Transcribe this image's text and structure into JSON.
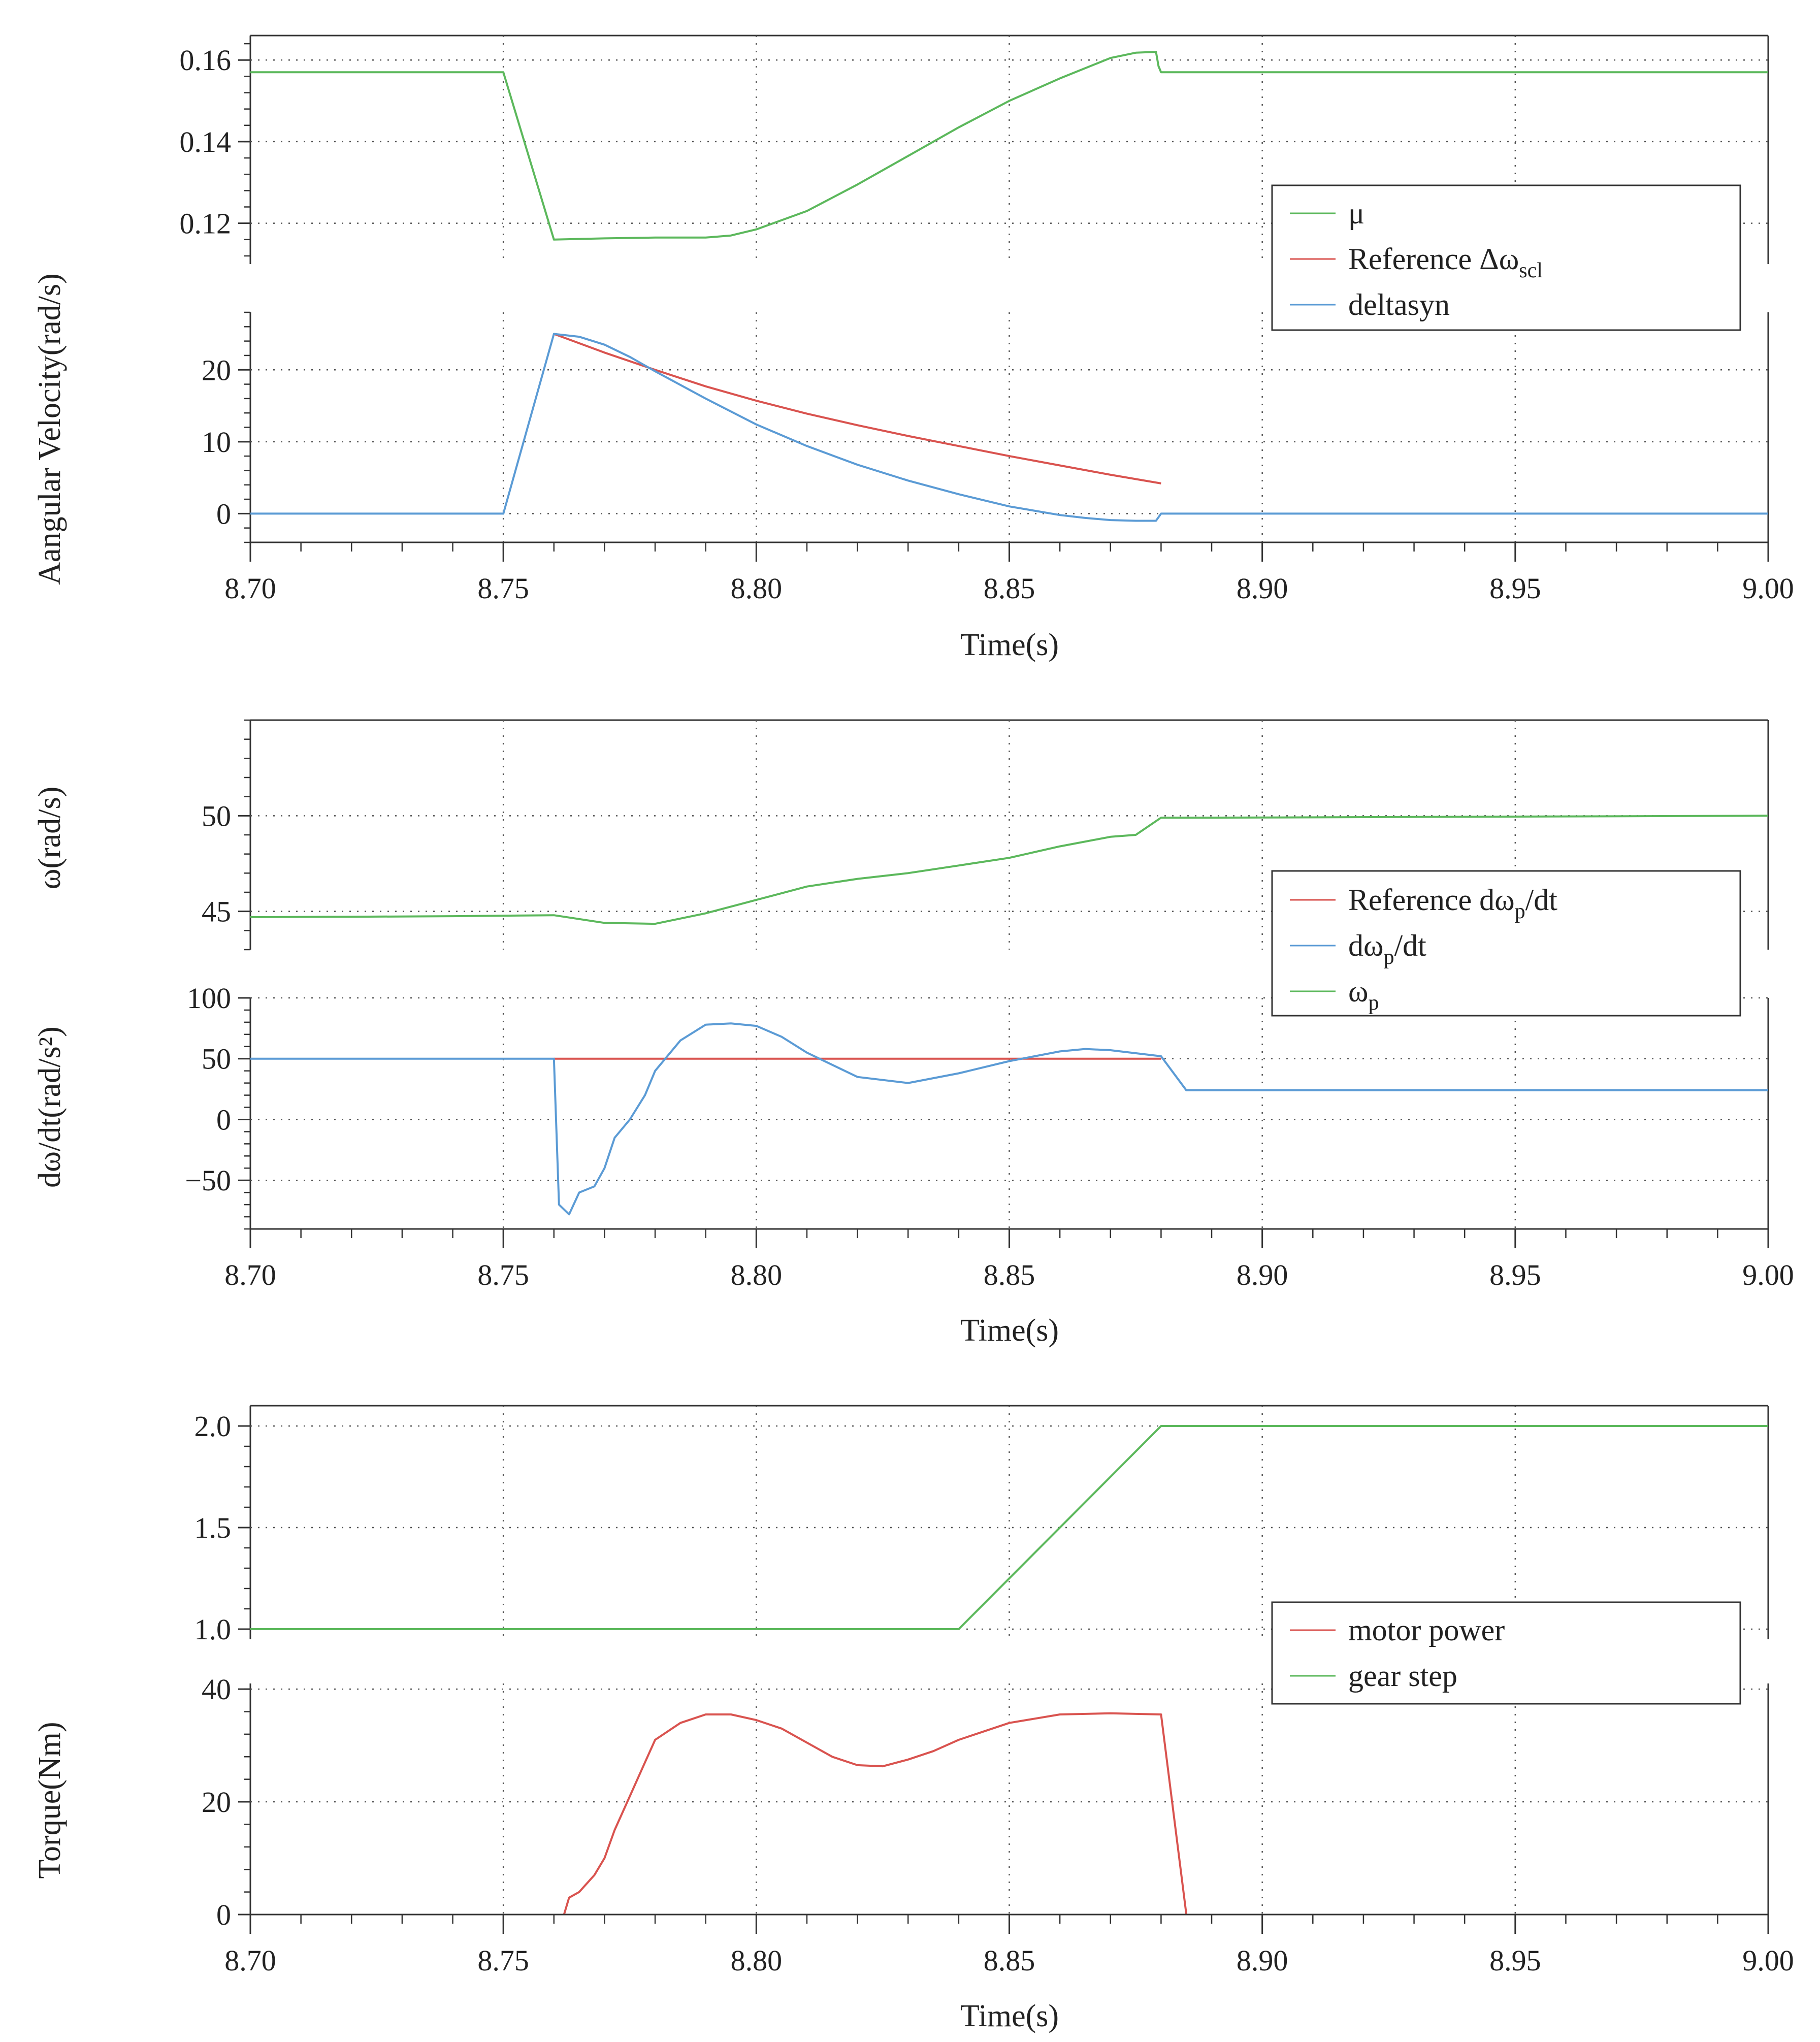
{
  "chart_data": [
    {
      "type": "line",
      "figure": "velocity",
      "ylabel": "Aangular Velocity(rad/s)",
      "xlabel": "Time(s)",
      "xlim": [
        8.7,
        9.0
      ],
      "xticks": [
        "8.70",
        "8.75",
        "8.80",
        "8.85",
        "8.90",
        "8.95",
        "9.00"
      ],
      "legend": {
        "placement": "right",
        "entries": [
          {
            "label": "μ",
            "color": "#5cb85c"
          },
          {
            "label": "Reference Δω",
            "sub": "scl",
            "color": "#d9534f"
          },
          {
            "label": "deltasyn",
            "color": "#5b9bd5"
          }
        ]
      },
      "panels": [
        {
          "ylim": [
            0.11,
            0.166
          ],
          "yticks": [
            "0.12",
            "0.14",
            "0.16"
          ],
          "series": [
            {
              "name": "μ",
              "color": "#5cb85c",
              "x": [
                8.7,
                8.75,
                8.76,
                8.77,
                8.78,
                8.79,
                8.795,
                8.8,
                8.81,
                8.82,
                8.83,
                8.84,
                8.85,
                8.86,
                8.87,
                8.875,
                8.879,
                8.8795,
                8.88,
                9.0
              ],
              "y": [
                0.157,
                0.157,
                0.116,
                0.1163,
                0.1165,
                0.1165,
                0.117,
                0.1185,
                0.123,
                0.1295,
                0.1365,
                0.1435,
                0.15,
                0.1555,
                0.1605,
                0.1618,
                0.162,
                0.1585,
                0.157,
                0.157
              ]
            }
          ]
        },
        {
          "ylim": [
            -4,
            28
          ],
          "yticks": [
            "0",
            "10",
            "20"
          ],
          "series": [
            {
              "name": "Reference Δω",
              "color": "#d9534f",
              "x": [
                8.76,
                8.77,
                8.78,
                8.79,
                8.8,
                8.81,
                8.82,
                8.83,
                8.84,
                8.85,
                8.86,
                8.87,
                8.88
              ],
              "y": [
                25,
                22.4,
                20.0,
                17.7,
                15.7,
                13.9,
                12.3,
                10.8,
                9.4,
                8.0,
                6.7,
                5.4,
                4.2
              ]
            },
            {
              "name": "deltasyn",
              "color": "#5b9bd5",
              "x": [
                8.7,
                8.75,
                8.76,
                8.765,
                8.77,
                8.775,
                8.78,
                8.79,
                8.8,
                8.81,
                8.82,
                8.83,
                8.84,
                8.85,
                8.86,
                8.865,
                8.87,
                8.875,
                8.879,
                8.88,
                9.0
              ],
              "y": [
                0,
                0,
                25,
                24.6,
                23.5,
                21.8,
                19.8,
                16.0,
                12.4,
                9.4,
                6.8,
                4.6,
                2.7,
                1.0,
                -0.2,
                -0.6,
                -0.9,
                -1.0,
                -1.0,
                0,
                0
              ]
            }
          ]
        }
      ]
    },
    {
      "type": "line",
      "figure": "acceleration",
      "xlabel": "Time(s)",
      "xlim": [
        8.7,
        9.0
      ],
      "xticks": [
        "8.70",
        "8.75",
        "8.80",
        "8.85",
        "8.90",
        "8.95",
        "9.00"
      ],
      "legend": {
        "placement": "right",
        "entries": [
          {
            "label": "Reference dω",
            "sub": "p",
            "tail": "/dt",
            "color": "#d9534f"
          },
          {
            "label": "dω",
            "sub": "p",
            "tail": "/dt",
            "color": "#5b9bd5"
          },
          {
            "label": "ω",
            "sub": "p",
            "tail": "",
            "color": "#5cb85c"
          }
        ]
      },
      "panels": [
        {
          "ylabel": "ω(rad/s)",
          "ylim": [
            43.0,
            55.0
          ],
          "yticks": [
            "45",
            "50"
          ],
          "series": [
            {
              "name": "ω",
              "color": "#5cb85c",
              "x": [
                8.7,
                8.72,
                8.74,
                8.76,
                8.77,
                8.78,
                8.79,
                8.8,
                8.81,
                8.82,
                8.83,
                8.84,
                8.85,
                8.86,
                8.87,
                8.875,
                8.88,
                8.89,
                9.0
              ],
              "y": [
                44.7,
                44.72,
                44.75,
                44.8,
                44.4,
                44.35,
                44.9,
                45.6,
                46.3,
                46.7,
                47.0,
                47.4,
                47.8,
                48.4,
                48.9,
                49.0,
                49.9,
                49.9,
                50.0
              ]
            }
          ]
        },
        {
          "ylabel": "dω/dt(rad/s²)",
          "ylim": [
            -90,
            100
          ],
          "yticks": [
            "−50",
            "0",
            "50",
            "100"
          ],
          "series": [
            {
              "name": "Reference dω/dt",
              "color": "#d9534f",
              "x": [
                8.76,
                8.88
              ],
              "y": [
                50,
                50
              ]
            },
            {
              "name": "dω/dt",
              "color": "#5b9bd5",
              "x": [
                8.7,
                8.76,
                8.761,
                8.763,
                8.765,
                8.768,
                8.77,
                8.772,
                8.775,
                8.778,
                8.78,
                8.785,
                8.79,
                8.795,
                8.8,
                8.805,
                8.81,
                8.82,
                8.83,
                8.84,
                8.85,
                8.86,
                8.865,
                8.87,
                8.88,
                8.885,
                9.0
              ],
              "y": [
                50,
                50,
                -70,
                -78,
                -60,
                -55,
                -40,
                -15,
                0,
                20,
                40,
                65,
                78,
                79,
                77,
                68,
                55,
                35,
                30,
                38,
                48,
                56,
                58,
                57,
                52,
                24,
                24
              ]
            }
          ]
        }
      ]
    },
    {
      "type": "line",
      "figure": "torque",
      "ylabel": "Torque(Nm)",
      "xlabel": "Time(s)",
      "xlim": [
        8.7,
        9.0
      ],
      "xticks": [
        "8.70",
        "8.75",
        "8.80",
        "8.85",
        "8.90",
        "8.95",
        "9.00"
      ],
      "legend": {
        "placement": "right",
        "entries": [
          {
            "label": "motor power",
            "color": "#d9534f"
          },
          {
            "label": "gear step",
            "color": "#5cb85c"
          }
        ]
      },
      "panels": [
        {
          "ylim": [
            0.95,
            2.1
          ],
          "yticks": [
            "1.0",
            "1.5",
            "2.0"
          ],
          "series": [
            {
              "name": "gear step",
              "color": "#5cb85c",
              "x": [
                8.7,
                8.84,
                8.88,
                9.0
              ],
              "y": [
                1.0,
                1.0,
                2.0,
                2.0
              ]
            }
          ]
        },
        {
          "ylim": [
            0,
            41
          ],
          "yticks": [
            "0",
            "20",
            "40"
          ],
          "series": [
            {
              "name": "motor power",
              "color": "#d9534f",
              "x": [
                8.762,
                8.763,
                8.765,
                8.768,
                8.77,
                8.772,
                8.775,
                8.778,
                8.78,
                8.785,
                8.79,
                8.795,
                8.8,
                8.805,
                8.81,
                8.815,
                8.82,
                8.825,
                8.83,
                8.835,
                8.84,
                8.85,
                8.86,
                8.87,
                8.88,
                8.885
              ],
              "y": [
                0,
                3,
                4,
                7,
                10,
                15,
                21,
                27,
                31,
                34,
                35.5,
                35.5,
                34.5,
                33,
                30.5,
                28,
                26.5,
                26.3,
                27.5,
                29,
                31,
                34,
                35.5,
                35.7,
                35.5,
                0
              ]
            }
          ]
        }
      ]
    }
  ]
}
